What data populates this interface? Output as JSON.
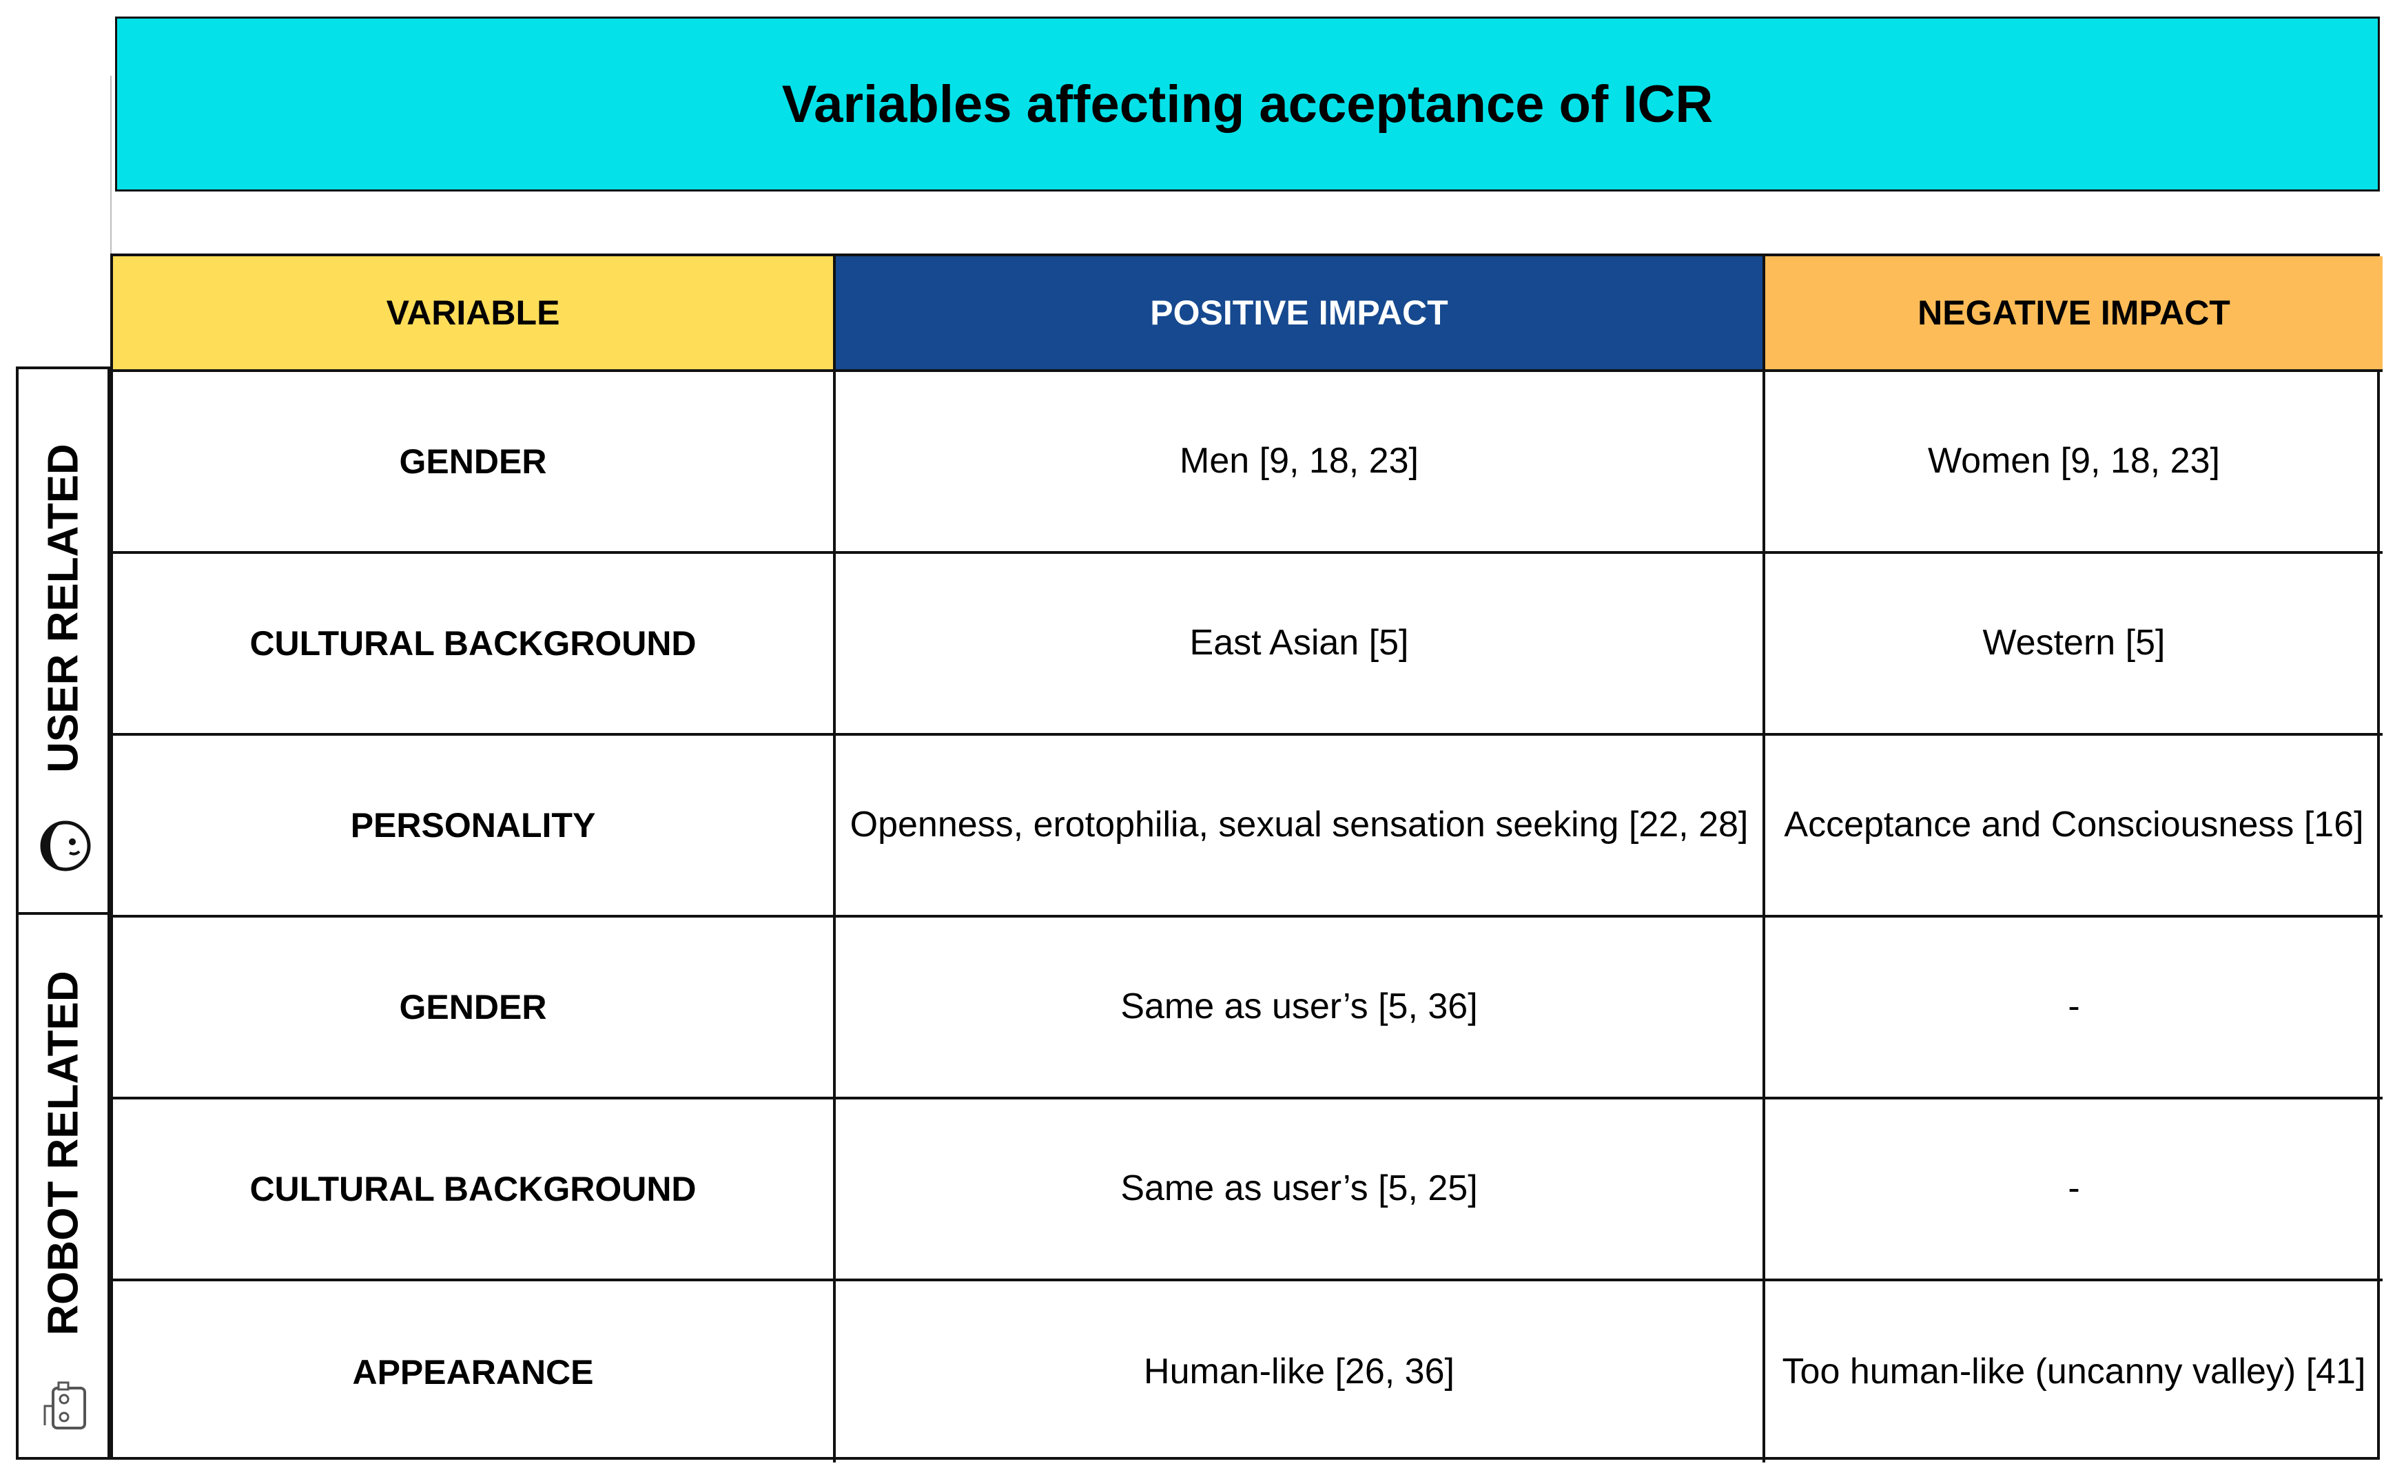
{
  "title": "Variables affecting acceptance of ICR",
  "headers": {
    "variable": "VARIABLE",
    "positive": "POSITIVE IMPACT",
    "negative": "NEGATIVE IMPACT"
  },
  "groups": {
    "user": {
      "label": "USER RELATED",
      "icon": "person-icon"
    },
    "robot": {
      "label": "ROBOT RELATED",
      "icon": "robot-icon"
    }
  },
  "rows": [
    {
      "variable": "GENDER",
      "positive": "Men [9, 18, 23]",
      "negative": "Women [9, 18, 23]"
    },
    {
      "variable": "CULTURAL BACKGROUND",
      "positive": "East Asian [5]",
      "negative": "Western [5]"
    },
    {
      "variable": "PERSONALITY",
      "positive": "Openness, erotophilia, sexual sensation seeking [22, 28]",
      "negative": "Acceptance and Consciousness [16]"
    },
    {
      "variable": "GENDER",
      "positive": "Same as user’s [5, 36]",
      "negative": "-"
    },
    {
      "variable": "CULTURAL BACKGROUND",
      "positive": "Same as user’s [5, 25]",
      "negative": "-"
    },
    {
      "variable": "APPEARANCE",
      "positive": "Human-like [26, 36]",
      "negative": "Too human-like (uncanny valley) [41]"
    }
  ],
  "colors": {
    "title_bg": "#05e1e9",
    "variable_header": "#fedd58",
    "positive_header": "#16498f",
    "negative_header": "#fdbc58"
  }
}
